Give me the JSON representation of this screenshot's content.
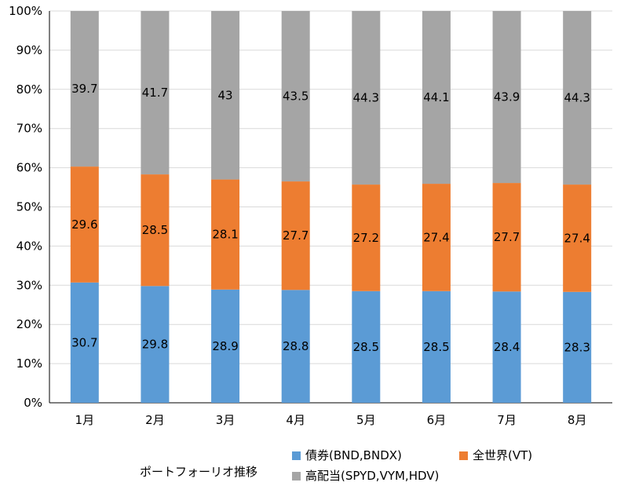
{
  "chart_data": {
    "type": "bar",
    "stacked": "percent",
    "categories": [
      "1月",
      "2月",
      "3月",
      "4月",
      "5月",
      "6月",
      "7月",
      "8月"
    ],
    "series": [
      {
        "name": "債券(BND,BNDX)",
        "color": "#5b9bd5",
        "values": [
          30.7,
          29.8,
          28.9,
          28.8,
          28.5,
          28.5,
          28.4,
          28.3
        ]
      },
      {
        "name": "全世界(VT)",
        "color": "#ed7d31",
        "values": [
          29.6,
          28.5,
          28.1,
          27.7,
          27.2,
          27.4,
          27.7,
          27.4
        ]
      },
      {
        "name": "高配当(SPYD,VYM,HDV)",
        "color": "#a5a5a5",
        "values": [
          39.7,
          41.7,
          43,
          43.5,
          44.3,
          44.1,
          43.9,
          44.3
        ]
      }
    ],
    "yticks": [
      "0%",
      "10%",
      "20%",
      "30%",
      "40%",
      "50%",
      "60%",
      "70%",
      "80%",
      "90%",
      "100%"
    ],
    "ylim": [
      0,
      100
    ],
    "grid": true,
    "legend_position": "bottom",
    "legend_title": "ポートフォーリオ推移"
  }
}
